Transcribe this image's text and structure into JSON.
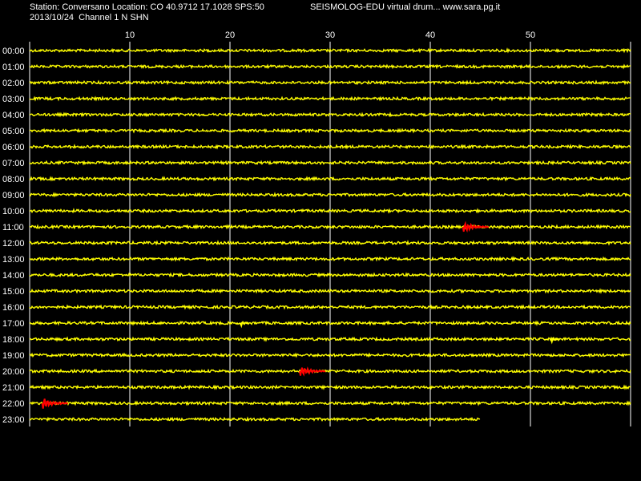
{
  "header": {
    "station_line": "Station: Conversano Location: CO 40.9712 17.1028 SPS:50",
    "brand_line": "SEISMOLOG-EDU virtual drum... www.sara.pg.it",
    "date_line": "2013/10/24  Channel 1 N SHN"
  },
  "colors": {
    "background": "#000000",
    "trace": "#ffff00",
    "event": "#ff0000",
    "grid": "#ffffff"
  },
  "chart_data": {
    "type": "line",
    "title": "",
    "xlabel": "",
    "ylabel": "",
    "x_ticks": [
      10,
      20,
      30,
      40,
      50
    ],
    "xlim": [
      0,
      60
    ],
    "grid": true,
    "rows": [
      "00:00",
      "01:00",
      "02:00",
      "03:00",
      "04:00",
      "05:00",
      "06:00",
      "07:00",
      "08:00",
      "09:00",
      "10:00",
      "11:00",
      "12:00",
      "13:00",
      "14:00",
      "15:00",
      "16:00",
      "17:00",
      "18:00",
      "19:00",
      "20:00",
      "21:00",
      "22:00",
      "23:00"
    ],
    "last_row_end_minute": 45,
    "events": [
      {
        "hour": "11:00",
        "minute": 43.5
      },
      {
        "hour": "17:00",
        "minute": 21.3
      },
      {
        "hour": "18:00",
        "minute": 52.3
      },
      {
        "hour": "20:00",
        "minute": 27.2
      },
      {
        "hour": "22:00",
        "minute": 1.5
      }
    ]
  }
}
